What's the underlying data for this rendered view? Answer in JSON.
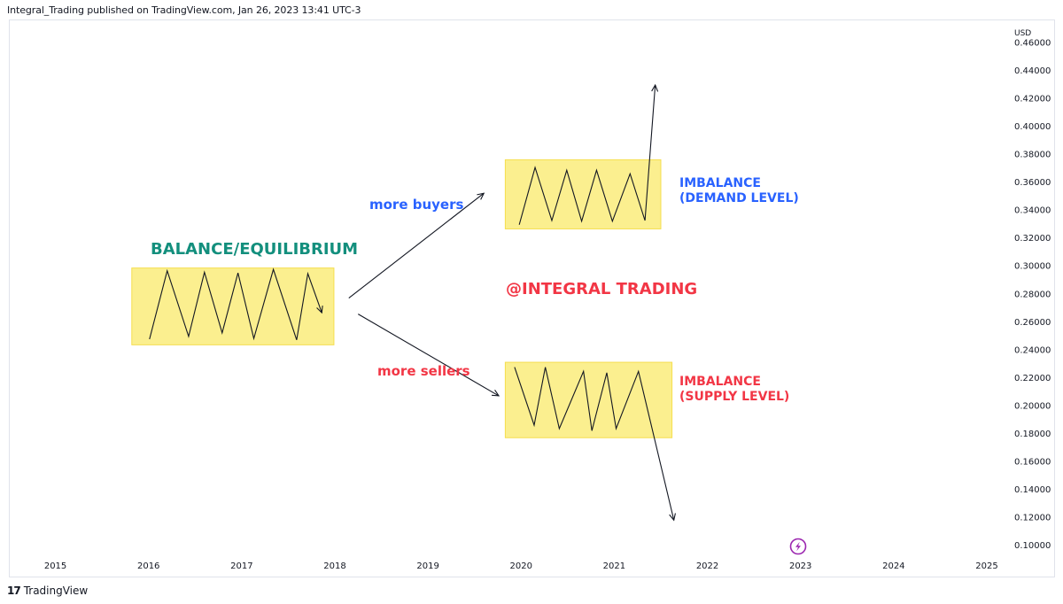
{
  "header": {
    "published_line": "Integral_Trading published on TradingView.com, Jan 26, 2023 13:41 UTC-3"
  },
  "footer": {
    "logo_mark": "17",
    "logo_text": "TradingView"
  },
  "colors": {
    "box_fill": "#fbef8f",
    "box_stroke": "#f5de4f",
    "teal": "#138f7d",
    "blue": "#2962ff",
    "red": "#f23645",
    "purple": "#9c27b0",
    "axis_text": "#131722"
  },
  "chart_data": {
    "type": "line",
    "title": "",
    "xlabel": "",
    "ylabel": "",
    "y_unit": "USD",
    "x_ticks": [
      "2015",
      "2016",
      "2017",
      "2018",
      "2019",
      "2020",
      "2021",
      "2022",
      "2023",
      "2024",
      "2025"
    ],
    "y_ticks": [
      "0.10000",
      "0.12000",
      "0.14000",
      "0.16000",
      "0.18000",
      "0.20000",
      "0.22000",
      "0.24000",
      "0.26000",
      "0.28000",
      "0.30000",
      "0.32000",
      "0.34000",
      "0.36000",
      "0.38000",
      "0.40000",
      "0.42000",
      "0.44000",
      "0.46000"
    ],
    "xlim": [
      2014.5,
      2025.2
    ],
    "ylim": [
      0.096,
      0.465
    ],
    "grid": false,
    "annotations": {
      "balance_label": "BALANCE/EQUILIBRIUM",
      "buyers_label": "more buyers",
      "sellers_label": "more sellers",
      "demand_label_1": "IMBALANCE",
      "demand_label_2": "(DEMAND LEVEL)",
      "supply_label_1": "IMBALANCE",
      "supply_label_2": "(SUPPLY LEVEL)",
      "watermark": "@INTEGRAL TRADING"
    },
    "boxes": [
      {
        "name": "balance-box",
        "x": [
          2015.82,
          2017.99
        ],
        "y": [
          0.2435,
          0.2985
        ]
      },
      {
        "name": "demand-box",
        "x": [
          2019.83,
          2021.5
        ],
        "y": [
          0.3265,
          0.376
        ]
      },
      {
        "name": "supply-box",
        "x": [
          2019.83,
          2021.62
        ],
        "y": [
          0.177,
          0.231
        ]
      }
    ],
    "series": [
      {
        "values": [
          [
            2016.01,
            0.2475
          ],
          [
            2016.2,
            0.2965
          ],
          [
            2016.43,
            0.2495
          ],
          [
            2016.6,
            0.2955
          ],
          [
            2016.79,
            0.252
          ],
          [
            2016.96,
            0.295
          ],
          [
            2017.13,
            0.248
          ],
          [
            2017.34,
            0.2975
          ],
          [
            2017.59,
            0.247
          ],
          [
            2017.71,
            0.2945
          ],
          [
            2017.86,
            0.2665
          ]
        ],
        "arrow_end": true
      },
      {
        "values": [
          [
            2019.98,
            0.3295
          ],
          [
            2020.15,
            0.3705
          ],
          [
            2020.33,
            0.3325
          ],
          [
            2020.49,
            0.3685
          ],
          [
            2020.65,
            0.332
          ],
          [
            2020.81,
            0.3685
          ],
          [
            2020.98,
            0.332
          ],
          [
            2021.17,
            0.366
          ],
          [
            2021.33,
            0.3325
          ],
          [
            2021.44,
            0.4295
          ]
        ],
        "arrow_end": true
      },
      {
        "values": [
          [
            2019.93,
            0.2275
          ],
          [
            2020.14,
            0.186
          ],
          [
            2020.26,
            0.2275
          ],
          [
            2020.41,
            0.1835
          ],
          [
            2020.67,
            0.2245
          ],
          [
            2020.76,
            0.182
          ],
          [
            2020.92,
            0.2235
          ],
          [
            2021.02,
            0.1835
          ],
          [
            2021.26,
            0.2245
          ],
          [
            2021.64,
            0.118
          ]
        ],
        "arrow_end": true
      },
      {
        "values": [
          [
            2018.15,
            0.277
          ],
          [
            2019.6,
            0.352
          ]
        ],
        "arrow_end": true
      },
      {
        "values": [
          [
            2018.25,
            0.2655
          ],
          [
            2019.76,
            0.207
          ]
        ],
        "arrow_end": true
      }
    ]
  }
}
